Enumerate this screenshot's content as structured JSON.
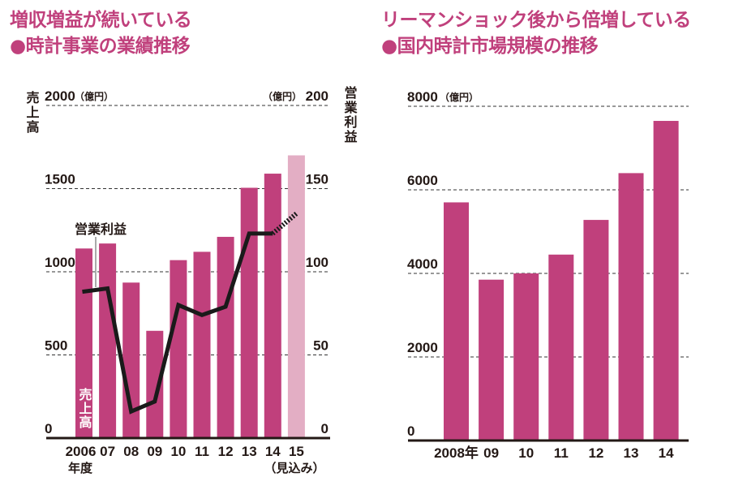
{
  "left_panel": {
    "headline": "増収増益が続いている",
    "subtitle": "●時計事業の業績推移"
  },
  "right_panel": {
    "headline": "リーマンショック後から倍増している",
    "subtitle": "●国内時計市場規模の推移"
  },
  "colors": {
    "bar": "#c0407c",
    "bar_forecast": "#e3aec4",
    "line": "#1a1a1a",
    "title": "#c0407c"
  },
  "chart_data": [
    {
      "type": "bar+line",
      "categories": [
        "2006",
        "07",
        "08",
        "09",
        "10",
        "11",
        "12",
        "13",
        "14",
        "15"
      ],
      "x_sublabels": {
        "first": "年度",
        "last": "（見込み）"
      },
      "series": [
        {
          "name": "売上高",
          "axis": "left",
          "type": "bar",
          "values": [
            1140,
            1170,
            935,
            645,
            1070,
            1120,
            1210,
            1505,
            1590,
            1700
          ],
          "forecast_from_index": 9
        },
        {
          "name": "営業利益",
          "axis": "right",
          "type": "line",
          "values": [
            88,
            90,
            16,
            22,
            80,
            74,
            79,
            123,
            123,
            135
          ],
          "forecast_from_index": 8
        }
      ],
      "left_axis": {
        "label": "売上高",
        "unit": "（億円）",
        "ylim": [
          0,
          2000
        ],
        "ticks": [
          "0",
          "500",
          "1000",
          "1500",
          "2000"
        ]
      },
      "right_axis": {
        "label": "営業利益",
        "unit": "（億円）",
        "ylim": [
          0,
          200
        ],
        "ticks": [
          "0",
          "50",
          "100",
          "150",
          "200"
        ]
      },
      "grid": true
    },
    {
      "type": "bar",
      "categories": [
        "2008年",
        "09",
        "10",
        "11",
        "12",
        "13",
        "14"
      ],
      "values": [
        5700,
        3850,
        4000,
        4450,
        5280,
        6400,
        7650
      ],
      "y_axis": {
        "unit": "（億円）",
        "ylim": [
          0,
          8000
        ],
        "ticks": [
          "0",
          "2000",
          "4000",
          "6000",
          "8000"
        ]
      },
      "grid": true
    }
  ]
}
